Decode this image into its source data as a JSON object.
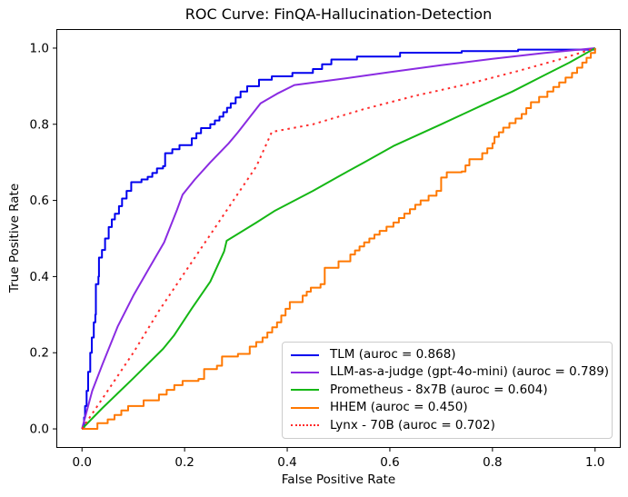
{
  "chart_data": {
    "type": "line",
    "title": "ROC Curve: FinQA-Hallucination-Detection",
    "xlabel": "False Positive Rate",
    "ylabel": "True Positive Rate",
    "xlim": [
      -0.05,
      1.05
    ],
    "ylim": [
      -0.05,
      1.05
    ],
    "xtick_values": [
      0.0,
      0.2,
      0.4,
      0.6,
      0.8,
      1.0
    ],
    "xtick_labels": [
      "0.0",
      "0.2",
      "0.4",
      "0.6",
      "0.8",
      "1.0"
    ],
    "ytick_values": [
      0.0,
      0.2,
      0.4,
      0.6,
      0.8,
      1.0
    ],
    "ytick_labels": [
      "0.0",
      "0.2",
      "0.4",
      "0.6",
      "0.8",
      "1.0"
    ],
    "grid": false,
    "legend_position": "lower right",
    "series": [
      {
        "name": "TLM (auroc = 0.868)",
        "auroc": 0.868,
        "color": "#0000ee",
        "style": "solid",
        "staircase": true,
        "points": [
          [
            0,
            0
          ],
          [
            0.004,
            0.03
          ],
          [
            0.006,
            0.06
          ],
          [
            0.009,
            0.1
          ],
          [
            0.012,
            0.15
          ],
          [
            0.016,
            0.2
          ],
          [
            0.019,
            0.24
          ],
          [
            0.023,
            0.28
          ],
          [
            0.026,
            0.3
          ],
          [
            0.027,
            0.38
          ],
          [
            0.032,
            0.4
          ],
          [
            0.033,
            0.45
          ],
          [
            0.039,
            0.47
          ],
          [
            0.045,
            0.5
          ],
          [
            0.052,
            0.53
          ],
          [
            0.058,
            0.55
          ],
          [
            0.064,
            0.565
          ],
          [
            0.072,
            0.585
          ],
          [
            0.078,
            0.605
          ],
          [
            0.087,
            0.625
          ],
          [
            0.096,
            0.648
          ],
          [
            0.116,
            0.655
          ],
          [
            0.128,
            0.662
          ],
          [
            0.137,
            0.672
          ],
          [
            0.146,
            0.684
          ],
          [
            0.158,
            0.69
          ],
          [
            0.162,
            0.724
          ],
          [
            0.19,
            0.745
          ],
          [
            0.214,
            0.763
          ],
          [
            0.232,
            0.79
          ],
          [
            0.25,
            0.8
          ],
          [
            0.268,
            0.82
          ],
          [
            0.29,
            0.855
          ],
          [
            0.309,
            0.886
          ],
          [
            0.322,
            0.9
          ],
          [
            0.345,
            0.917
          ],
          [
            0.37,
            0.926
          ],
          [
            0.41,
            0.935
          ],
          [
            0.45,
            0.945
          ],
          [
            0.486,
            0.97
          ],
          [
            0.536,
            0.978
          ],
          [
            0.62,
            0.988
          ],
          [
            0.74,
            0.992
          ],
          [
            0.85,
            0.996
          ],
          [
            1,
            1
          ]
        ]
      },
      {
        "name": "LLM-as-a-judge (gpt-4o-mini) (auroc = 0.789)",
        "auroc": 0.789,
        "color": "#8a2be2",
        "style": "solid",
        "staircase": false,
        "points": [
          [
            0,
            0
          ],
          [
            0.02,
            0.1
          ],
          [
            0.04,
            0.17
          ],
          [
            0.07,
            0.27
          ],
          [
            0.1,
            0.35
          ],
          [
            0.13,
            0.42
          ],
          [
            0.16,
            0.49
          ],
          [
            0.185,
            0.575
          ],
          [
            0.196,
            0.615
          ],
          [
            0.22,
            0.655
          ],
          [
            0.25,
            0.7
          ],
          [
            0.286,
            0.75
          ],
          [
            0.304,
            0.779
          ],
          [
            0.348,
            0.855
          ],
          [
            0.38,
            0.88
          ],
          [
            0.414,
            0.903
          ],
          [
            0.5,
            0.918
          ],
          [
            0.6,
            0.937
          ],
          [
            0.7,
            0.955
          ],
          [
            0.8,
            0.972
          ],
          [
            0.9,
            0.987
          ],
          [
            1,
            1
          ]
        ]
      },
      {
        "name": "Prometheus - 8x7B (auroc = 0.604)",
        "auroc": 0.604,
        "color": "#15b715",
        "style": "solid",
        "staircase": false,
        "points": [
          [
            0,
            0
          ],
          [
            0.04,
            0.055
          ],
          [
            0.1,
            0.133
          ],
          [
            0.158,
            0.21
          ],
          [
            0.179,
            0.245
          ],
          [
            0.214,
            0.316
          ],
          [
            0.25,
            0.387
          ],
          [
            0.277,
            0.466
          ],
          [
            0.282,
            0.494
          ],
          [
            0.34,
            0.542
          ],
          [
            0.375,
            0.572
          ],
          [
            0.45,
            0.625
          ],
          [
            0.5,
            0.663
          ],
          [
            0.55,
            0.7
          ],
          [
            0.607,
            0.743
          ],
          [
            0.7,
            0.8
          ],
          [
            0.78,
            0.85
          ],
          [
            0.839,
            0.886
          ],
          [
            0.9,
            0.928
          ],
          [
            0.95,
            0.962
          ],
          [
            1,
            1
          ]
        ]
      },
      {
        "name": "HHEM (auroc = 0.450)",
        "auroc": 0.45,
        "color": "#ff7800",
        "style": "solid",
        "staircase": true,
        "points": [
          [
            0,
            0
          ],
          [
            0.03,
            0.015
          ],
          [
            0.05,
            0.025
          ],
          [
            0.09,
            0.06
          ],
          [
            0.12,
            0.075
          ],
          [
            0.15,
            0.09
          ],
          [
            0.18,
            0.115
          ],
          [
            0.196,
            0.126
          ],
          [
            0.227,
            0.131
          ],
          [
            0.238,
            0.157
          ],
          [
            0.263,
            0.166
          ],
          [
            0.273,
            0.19
          ],
          [
            0.304,
            0.197
          ],
          [
            0.327,
            0.216
          ],
          [
            0.352,
            0.24
          ],
          [
            0.38,
            0.28
          ],
          [
            0.405,
            0.333
          ],
          [
            0.43,
            0.35
          ],
          [
            0.446,
            0.371
          ],
          [
            0.465,
            0.38
          ],
          [
            0.473,
            0.423
          ],
          [
            0.5,
            0.44
          ],
          [
            0.523,
            0.458
          ],
          [
            0.55,
            0.49
          ],
          [
            0.58,
            0.52
          ],
          [
            0.607,
            0.542
          ],
          [
            0.639,
            0.577
          ],
          [
            0.66,
            0.6
          ],
          [
            0.691,
            0.625
          ],
          [
            0.7,
            0.66
          ],
          [
            0.711,
            0.674
          ],
          [
            0.74,
            0.676
          ],
          [
            0.755,
            0.708
          ],
          [
            0.78,
            0.724
          ],
          [
            0.8,
            0.75
          ],
          [
            0.804,
            0.767
          ],
          [
            0.821,
            0.791
          ],
          [
            0.857,
            0.827
          ],
          [
            0.875,
            0.858
          ],
          [
            0.907,
            0.886
          ],
          [
            0.93,
            0.91
          ],
          [
            0.955,
            0.935
          ],
          [
            0.975,
            0.962
          ],
          [
            1,
            1
          ]
        ]
      },
      {
        "name": "Lynx - 70B (auroc = 0.702)",
        "auroc": 0.702,
        "color": "#ff2a2a",
        "style": "dotted",
        "staircase": false,
        "points": [
          [
            0,
            0
          ],
          [
            0.05,
            0.1
          ],
          [
            0.1,
            0.2
          ],
          [
            0.15,
            0.31
          ],
          [
            0.2,
            0.41
          ],
          [
            0.25,
            0.51
          ],
          [
            0.3,
            0.61
          ],
          [
            0.34,
            0.69
          ],
          [
            0.37,
            0.78
          ],
          [
            0.45,
            0.8
          ],
          [
            0.55,
            0.84
          ],
          [
            0.65,
            0.875
          ],
          [
            0.75,
            0.905
          ],
          [
            0.85,
            0.94
          ],
          [
            0.93,
            0.97
          ],
          [
            1,
            1
          ]
        ]
      }
    ]
  }
}
